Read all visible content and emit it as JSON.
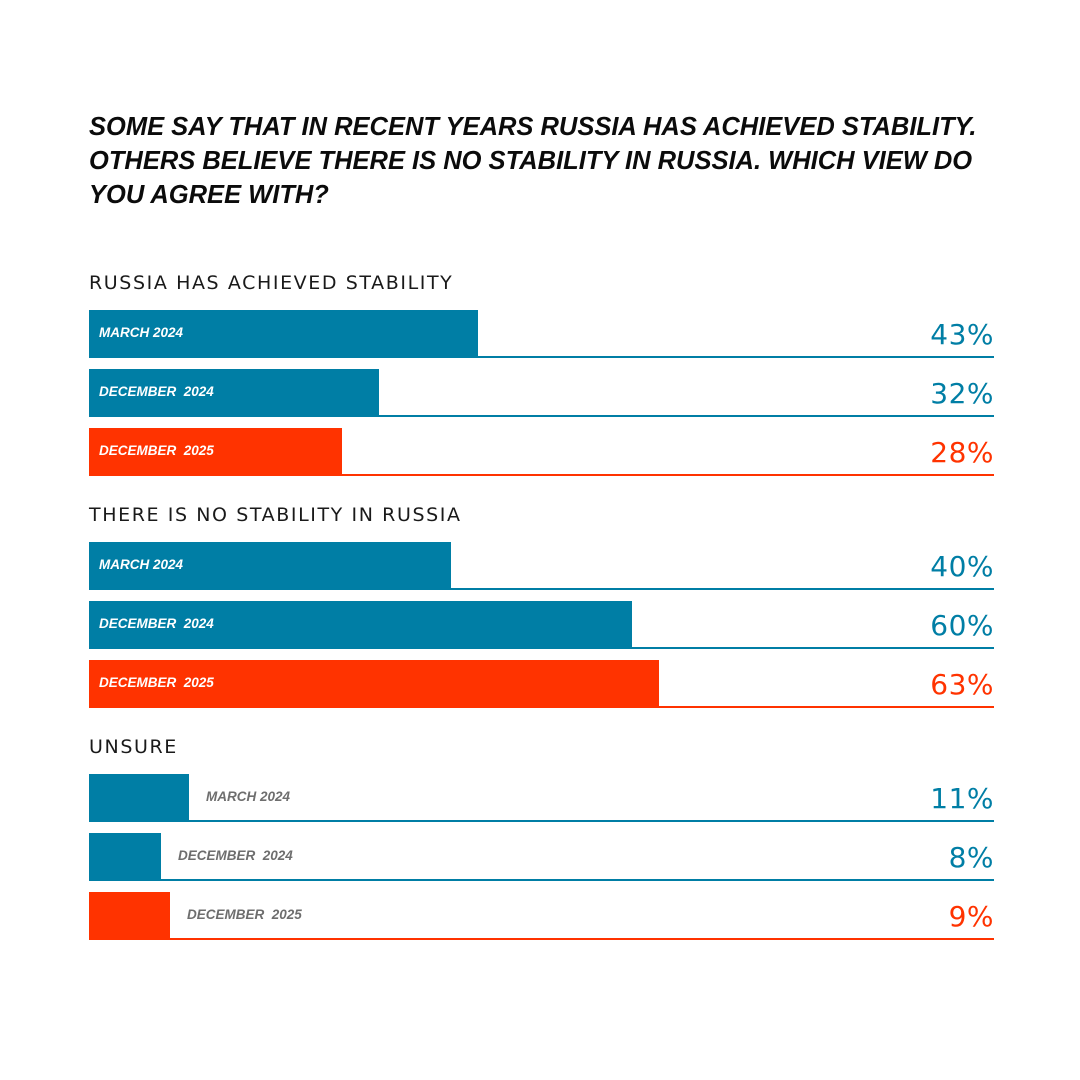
{
  "title": "SOME SAY THAT IN RECENT YEARS RUSSIA HAS ACHIEVED STABILITY. OTHERS BELIEVE THERE IS NO STABILITY IN RUSSIA. WHICH VIEW DO YOU AGREE WITH?",
  "colors": {
    "teal": "#007EA5",
    "red": "#FF3300"
  },
  "chart_data": {
    "type": "bar",
    "orientation": "horizontal",
    "title": "SOME SAY THAT IN RECENT YEARS RUSSIA HAS ACHIEVED STABILITY. OTHERS BELIEVE THERE IS NO STABILITY IN RUSSIA. WHICH VIEW DO YOU AGREE WITH?",
    "xlim": [
      0,
      100
    ],
    "unit": "%",
    "groups": [
      {
        "label": "RUSSIA HAS ACHIEVED STABILITY",
        "rows": [
          {
            "period": "MARCH 2024",
            "value": 43,
            "value_label": "43%",
            "color": "#007EA5"
          },
          {
            "period": "DECEMBER  2024",
            "value": 32,
            "value_label": "32%",
            "color": "#007EA5"
          },
          {
            "period": "DECEMBER  2025",
            "value": 28,
            "value_label": "28%",
            "color": "#FF3300"
          }
        ]
      },
      {
        "label": "THERE IS NO STABILITY IN RUSSIA",
        "rows": [
          {
            "period": "MARCH 2024",
            "value": 40,
            "value_label": "40%",
            "color": "#007EA5"
          },
          {
            "period": "DECEMBER  2024",
            "value": 60,
            "value_label": "60%",
            "color": "#007EA5"
          },
          {
            "period": "DECEMBER  2025",
            "value": 63,
            "value_label": "63%",
            "color": "#FF3300"
          }
        ]
      },
      {
        "label": "UNSURE",
        "rows": [
          {
            "period": "MARCH 2024",
            "value": 11,
            "value_label": "11%",
            "color": "#007EA5"
          },
          {
            "period": "DECEMBER  2024",
            "value": 8,
            "value_label": "8%",
            "color": "#007EA5"
          },
          {
            "period": "DECEMBER  2025",
            "value": 9,
            "value_label": "9%",
            "color": "#FF3300"
          }
        ]
      }
    ]
  }
}
